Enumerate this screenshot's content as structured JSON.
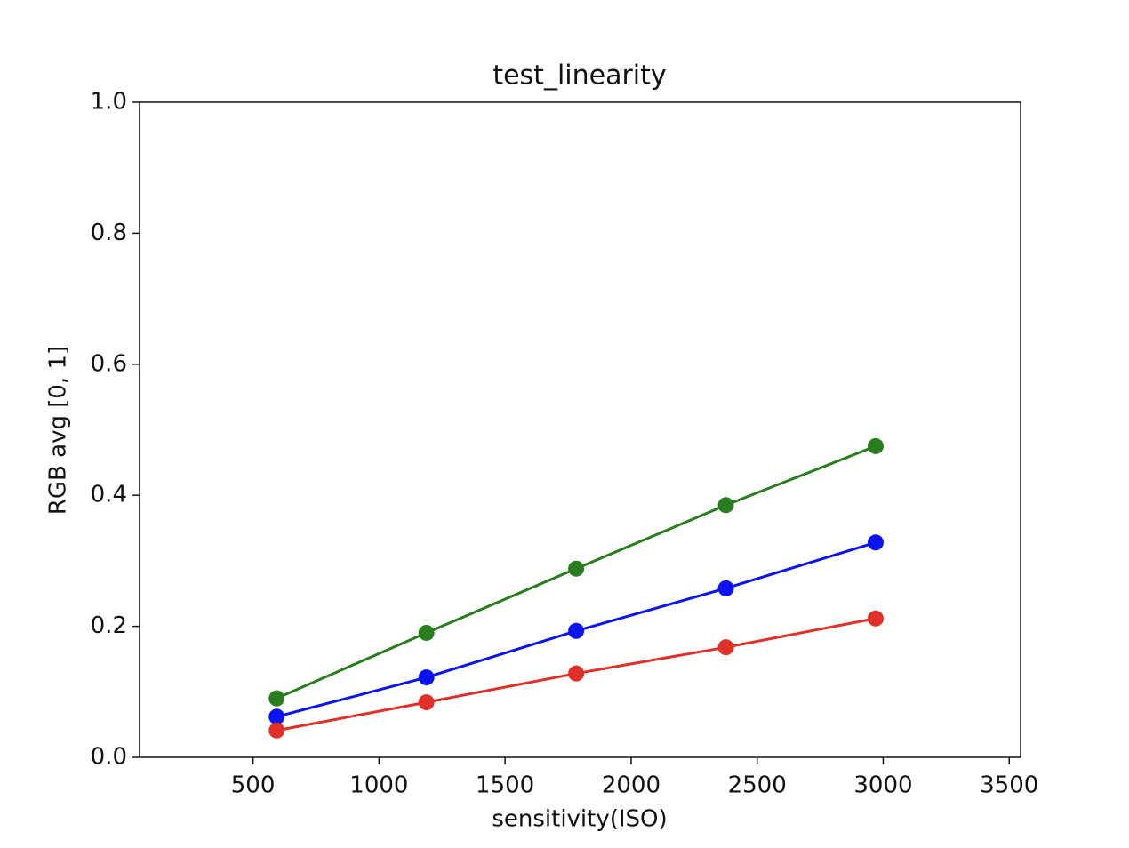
{
  "chart_data": {
    "type": "line",
    "title": "test_linearity",
    "x_label": "sensitivity(ISO)",
    "y_label": "RGB avg [0, 1]",
    "x": [
      594,
      1188,
      1782,
      2376,
      2970
    ],
    "series": [
      {
        "color": "#2a7d1e",
        "values": [
          0.09,
          0.19,
          0.288,
          0.385,
          0.475
        ]
      },
      {
        "color": "#0a14f0",
        "values": [
          0.062,
          0.122,
          0.193,
          0.258,
          0.328
        ]
      },
      {
        "color": "#e0302a",
        "values": [
          0.041,
          0.084,
          0.128,
          0.168,
          0.212
        ]
      }
    ],
    "xlim": [
      50,
      3545
    ],
    "xticks": [
      500,
      1000,
      1500,
      2000,
      2500,
      3000,
      3500
    ],
    "ylim": [
      0,
      1
    ],
    "yticks": [
      {
        "value": 0,
        "label": "0.0"
      },
      0.2,
      0.4,
      0.6,
      0.8,
      {
        "value": 1,
        "label": "1.0"
      }
    ],
    "grid": false
  }
}
